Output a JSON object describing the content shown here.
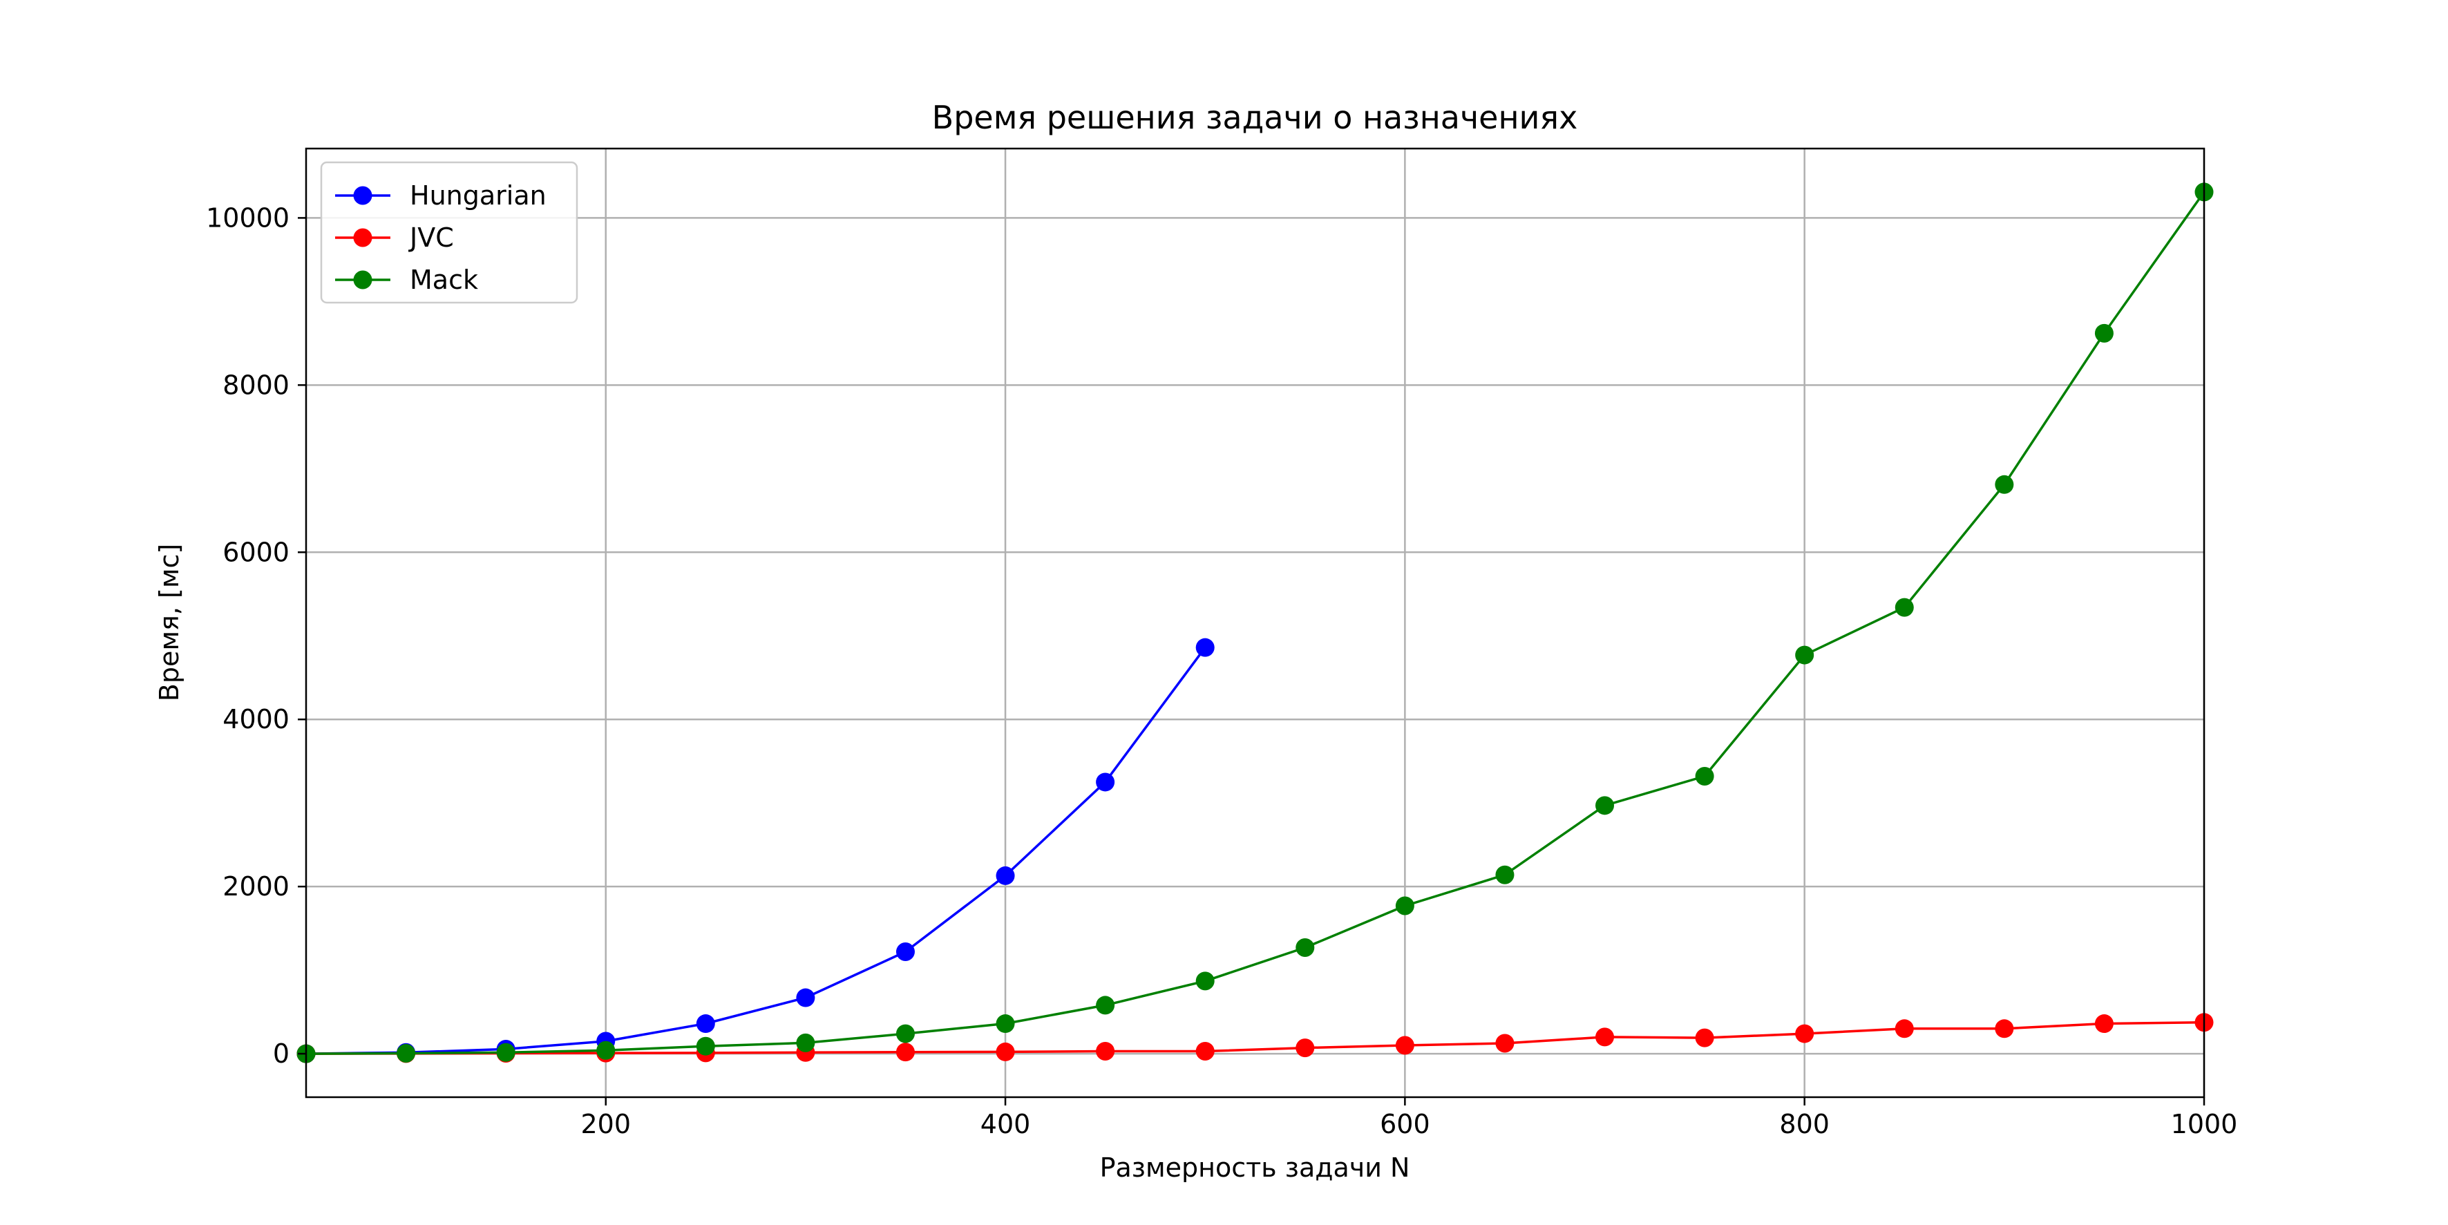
{
  "chart_data": {
    "type": "line",
    "title": "Время решения задачи о назначениях",
    "xlabel": "Размерность задачи N",
    "ylabel": "Время, [мс]",
    "xlim": [
      50,
      1000
    ],
    "ylim": [
      -520,
      10830
    ],
    "xticks": [
      200,
      400,
      600,
      800,
      1000
    ],
    "yticks": [
      0,
      2000,
      4000,
      6000,
      8000,
      10000
    ],
    "grid": true,
    "legend": "top-left",
    "series": [
      {
        "name": "Hungarian",
        "color": "#0000ff",
        "x": [
          50,
          100,
          150,
          200,
          250,
          300,
          350,
          400,
          450,
          500
        ],
        "y": [
          0,
          15,
          55,
          150,
          360,
          670,
          1220,
          2130,
          3250,
          4860
        ]
      },
      {
        "name": "JVC",
        "color": "#ff0000",
        "x": [
          50,
          100,
          150,
          200,
          250,
          300,
          350,
          400,
          450,
          500,
          550,
          600,
          650,
          700,
          750,
          800,
          850,
          900,
          950,
          1000
        ],
        "y": [
          0,
          2,
          5,
          8,
          10,
          15,
          20,
          22,
          30,
          30,
          70,
          100,
          125,
          200,
          190,
          240,
          300,
          300,
          360,
          375
        ]
      },
      {
        "name": "Mack",
        "color": "#008000",
        "x": [
          50,
          100,
          150,
          200,
          250,
          300,
          350,
          400,
          450,
          500,
          550,
          600,
          650,
          700,
          750,
          800,
          850,
          900,
          950,
          1000
        ],
        "y": [
          0,
          5,
          15,
          40,
          90,
          130,
          240,
          360,
          580,
          870,
          1270,
          1770,
          2140,
          2970,
          3320,
          4770,
          5340,
          6810,
          8620,
          10310
        ]
      }
    ]
  }
}
